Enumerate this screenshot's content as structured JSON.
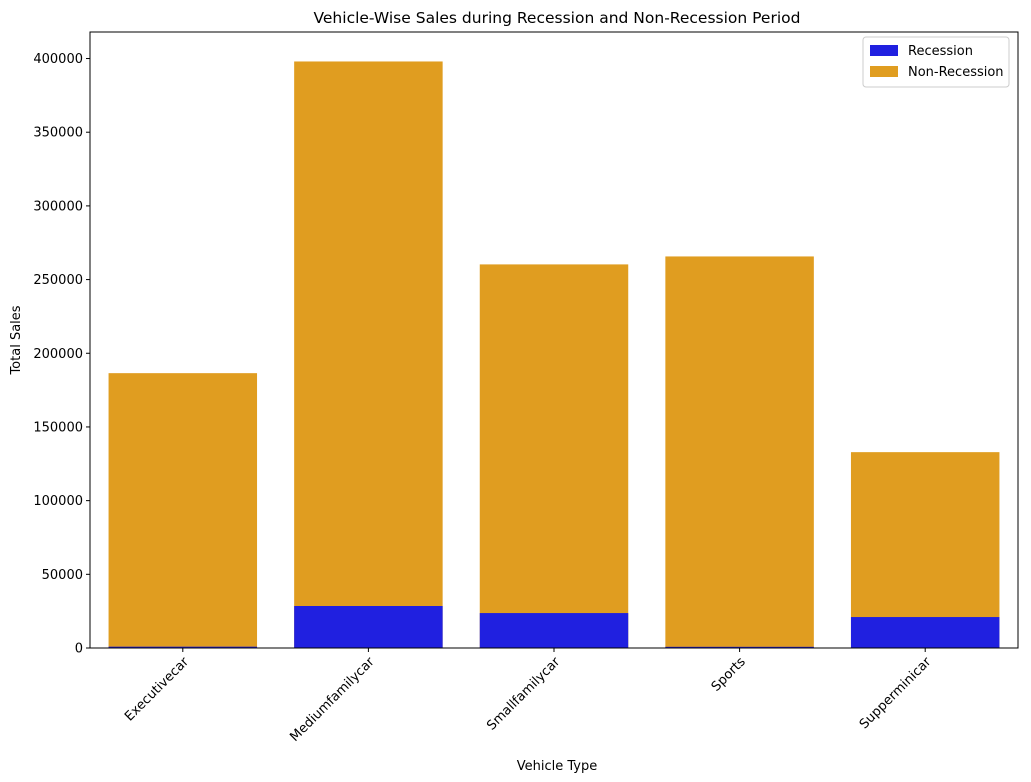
{
  "chart_data": {
    "type": "bar",
    "title": "Vehicle-Wise Sales during Recession and Non-Recession Period",
    "xlabel": "Vehicle Type",
    "ylabel": "Total Sales",
    "categories": [
      "Executivecar",
      "Mediumfamilycar",
      "Smallfamilycar",
      "Sports",
      "Supperminicar"
    ],
    "series": [
      {
        "name": "Non-Recession",
        "color": "#e09d20",
        "values": [
          186500,
          398000,
          260300,
          265700,
          132900
        ]
      },
      {
        "name": "Recession",
        "color": "#2020e0",
        "values": [
          900,
          28500,
          23700,
          800,
          21000
        ]
      }
    ],
    "ylim": [
      0,
      418000
    ],
    "yticks": [
      0,
      50000,
      100000,
      150000,
      200000,
      250000,
      300000,
      350000,
      400000
    ],
    "grid": false,
    "legend": {
      "placement": "top-right",
      "entries": [
        "Recession",
        "Non-Recession"
      ]
    }
  }
}
